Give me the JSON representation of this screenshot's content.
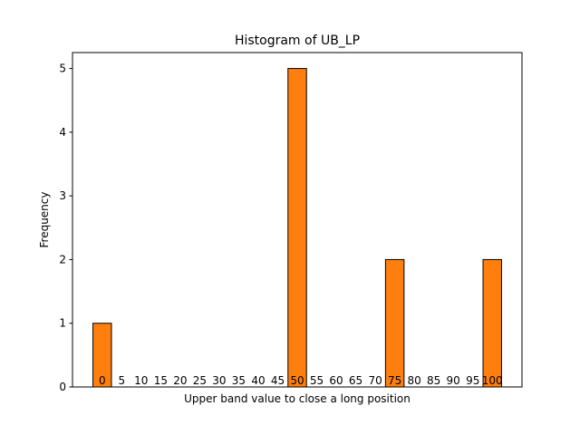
{
  "chart_data": {
    "type": "bar",
    "title": "Histogram of UB_LP",
    "xlabel": "Upper band value to close a long position",
    "ylabel": "Frequency",
    "categories": [
      "0",
      "5",
      "10",
      "15",
      "20",
      "25",
      "30",
      "35",
      "40",
      "45",
      "50",
      "55",
      "60",
      "65",
      "70",
      "75",
      "80",
      "85",
      "90",
      "95",
      "100"
    ],
    "values": [
      1,
      0,
      0,
      0,
      0,
      0,
      0,
      0,
      0,
      0,
      5,
      0,
      0,
      0,
      0,
      2,
      0,
      0,
      0,
      0,
      2
    ],
    "yticks": [
      0,
      1,
      2,
      3,
      4,
      5
    ],
    "ylim": [
      0,
      5.25
    ],
    "grid": false,
    "bar_color": "#ff7f0e",
    "edge_color": "#000000"
  }
}
